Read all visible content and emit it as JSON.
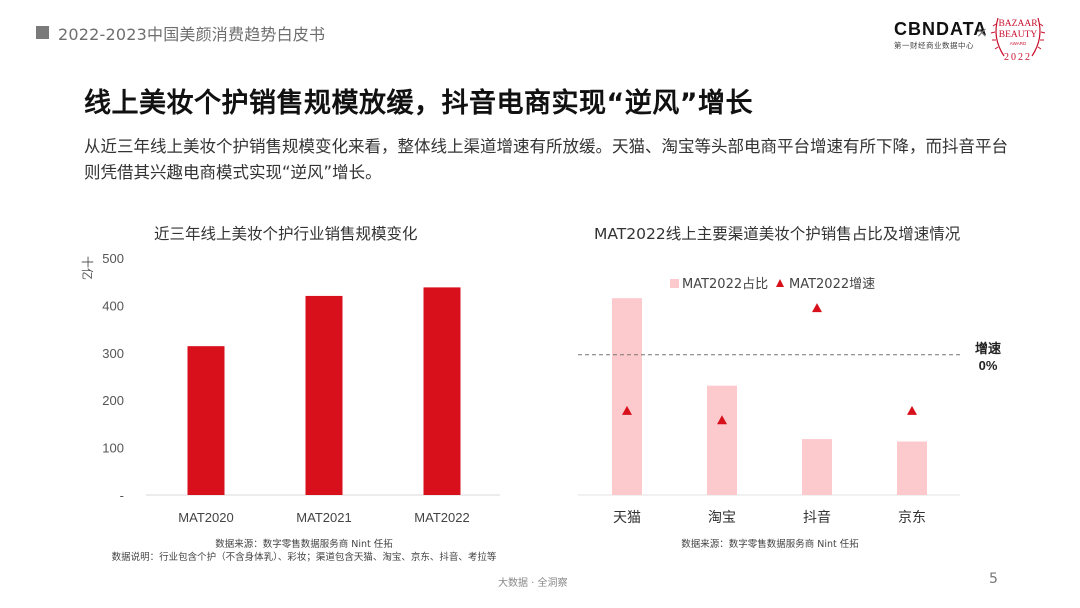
{
  "header": {
    "text": "2022-2023中国美颜消费趋势白皮书"
  },
  "logos": {
    "cbn": "CBNDATA",
    "cbn_sub": "第一财经商业数据中心",
    "x": "×",
    "bazaar_top": "BAZAAR",
    "bazaar_mid": "BEAUTY",
    "bazaar_small": "AWARD",
    "year": "2022"
  },
  "title": "线上美妆个护销售规模放缓，抖音电商实现“逆风”增长",
  "subtitle": "从近三年线上美妆个护销售规模变化来看，整体线上渠道增速有所放缓。天猫、淘宝等头部电商平台增速有所下降，而抖音平台则凭借其兴趣电商模式实现“逆风”增长。",
  "chart_data": [
    {
      "type": "bar",
      "title": "近三年线上美妆个护行业销售规模变化",
      "ylabel": "十亿",
      "categories": [
        "MAT2020",
        "MAT2021",
        "MAT2022"
      ],
      "values": [
        314,
        420,
        438
      ],
      "ylim": [
        0,
        500
      ],
      "yticks": [
        0,
        100,
        200,
        300,
        400,
        500
      ],
      "ytick_labels": [
        "-",
        "100",
        "200",
        "300",
        "400",
        "500"
      ],
      "color": "#d7101b",
      "grid": false
    },
    {
      "type": "bar",
      "title": "MAT2022线上主要渠道美妆个护销售占比及增速情况",
      "categories": [
        "天猫",
        "淘宝",
        "抖音",
        "京东"
      ],
      "series": [
        {
          "name": "MAT2022占比",
          "type": "bar",
          "values": [
            40.5,
            22.5,
            11.5,
            11.0
          ],
          "color": "#fcc9cd"
        },
        {
          "name": "MAT2022增速",
          "type": "scatter",
          "marker": "triangle",
          "values": [
            -12,
            -14,
            10,
            -12
          ],
          "color": "#d7101b"
        }
      ],
      "share_ylim": [
        0,
        50
      ],
      "growth_ylim": [
        -30,
        22
      ],
      "reference_line": {
        "value": 0,
        "label_line1": "增速",
        "label_line2": "0%",
        "style": "dashed"
      },
      "legend": "top-center",
      "grid": false
    }
  ],
  "sources": {
    "left_line1": "数据来源：数字零售数据服务商 Nint 任拓",
    "left_line2": "数据说明：行业包含个护（不含身体乳）、彩妆；渠道包含天猫、淘宝、京东、抖音、考拉等",
    "right_line1": "数据来源：数字零售数据服务商 Nint 任拓"
  },
  "footer": {
    "text": "大数据 · 全洞察",
    "page": "5"
  }
}
